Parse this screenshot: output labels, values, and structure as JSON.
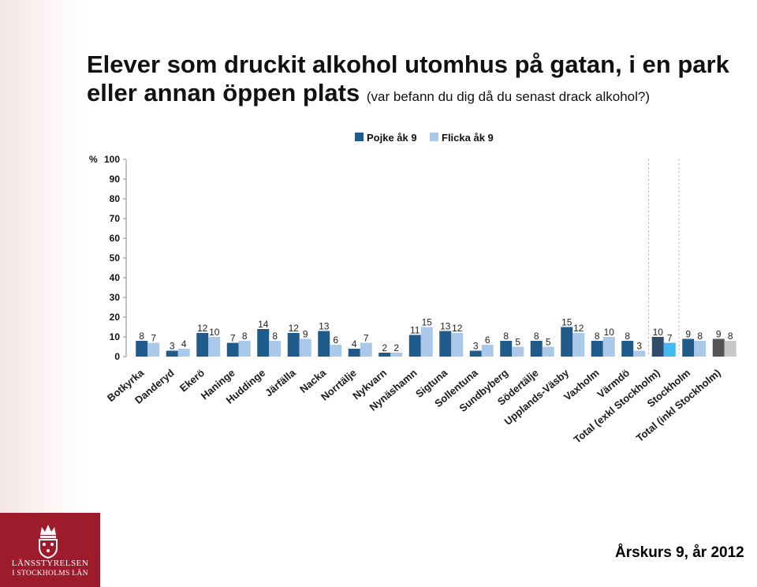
{
  "title": "Elever som druckit alkohol utomhus på gatan, i en park eller annan öppen plats",
  "subtitle": "(var befann du dig då du senast drack alkohol?)",
  "footer": "Årskurs 9, år 2012",
  "logo": {
    "line1": "LÄNSSTYRELSEN",
    "line2": "I STOCKHOLMS LÄN",
    "icon": "crown-icon"
  },
  "colors": {
    "boy": "#1f5c8b",
    "girl": "#a9c8ea",
    "accent": "#9e1b2c"
  },
  "chart_data": {
    "type": "bar",
    "title": "",
    "ylabel": "%",
    "ylim": [
      0,
      100
    ],
    "yticks": [
      0,
      10,
      20,
      30,
      40,
      50,
      60,
      70,
      80,
      90,
      100
    ],
    "legend_position": "top",
    "categories": [
      "Botkyrka",
      "Danderyd",
      "Ekerö",
      "Haninge",
      "Huddinge",
      "Järfälla",
      "Nacka",
      "Norrtälje",
      "Nykvarn",
      "Nynäshamn",
      "Sigtuna",
      "Sollentuna",
      "Sundbyberg",
      "Södertälje",
      "Upplands-Väsby",
      "Vaxholm",
      "Värmdö",
      "Total (exkl Stockholm)",
      "Stockholm",
      "Total (inkl Stockholm)"
    ],
    "series": [
      {
        "name": "Pojke åk 9",
        "values": [
          8,
          3,
          12,
          7,
          14,
          12,
          13,
          4,
          2,
          11,
          13,
          3,
          8,
          8,
          15,
          8,
          8,
          10,
          9,
          9
        ]
      },
      {
        "name": "Flicka åk 9",
        "values": [
          7,
          4,
          10,
          8,
          8,
          9,
          6,
          7,
          2,
          15,
          12,
          6,
          5,
          5,
          12,
          10,
          3,
          7,
          8,
          8
        ]
      }
    ]
  }
}
